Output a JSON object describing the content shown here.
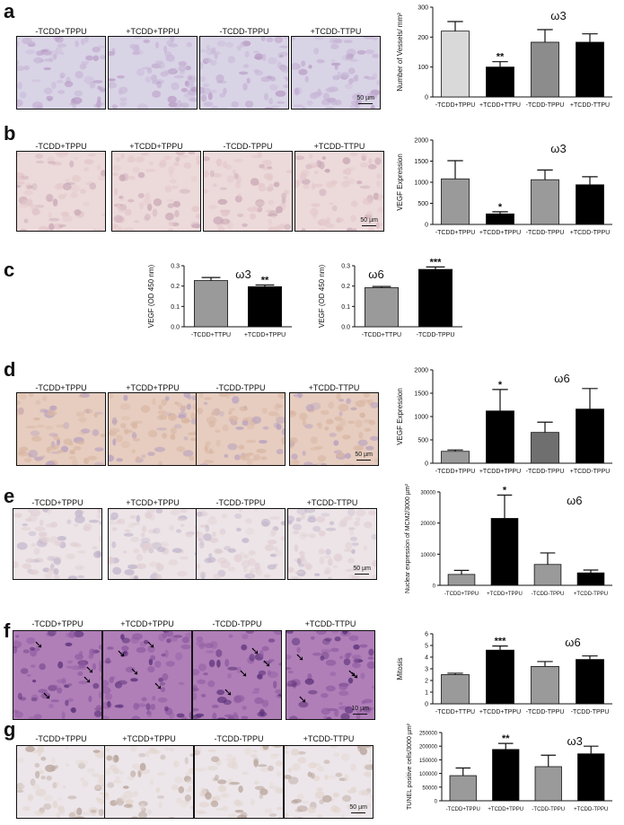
{
  "figure": {
    "panels": [
      {
        "letter": "a",
        "labels": [
          "-TCDD+TPPU",
          "+TCDD+TPPU",
          "-TCDD-TPPU",
          "+TCDD-TTPU"
        ],
        "scale": "50 µm",
        "bg": "#d9d3e6",
        "tint": "#c7b7d6",
        "spot": "#b89cc5"
      },
      {
        "letter": "b",
        "labels": [
          "-TCDD+TPPU",
          "+TCDD+TPPU",
          "-TCDD-TPPU",
          "+TCDD-TTPU"
        ],
        "scale": "50 µm",
        "bg": "#ecd9da",
        "tint": "#e3c7c9",
        "spot": "#c9a8b6"
      },
      {
        "letter": "c",
        "labels": [],
        "scale": "",
        "bg": "#ffffff",
        "tint": "#ffffff",
        "spot": "#ffffff"
      },
      {
        "letter": "d",
        "labels": [
          "-TCDD+TPPU",
          "+TCDD+TPPU",
          "-TCDD-TPPU",
          "+TCDD-TTPU"
        ],
        "scale": "50 µm",
        "bg": "#e6cdbf",
        "tint": "#d9b6a3",
        "spot": "#b7a0c0"
      },
      {
        "letter": "e",
        "labels": [
          "-TCDD+TPPU",
          "+TCDD+TPPU",
          "-TCDD-TPPU",
          "+TCDD-TTPU"
        ],
        "scale": "50 µm",
        "bg": "#ece4e6",
        "tint": "#e1cfd4",
        "spot": "#c1b5cc"
      },
      {
        "letter": "f",
        "labels": [
          "-TCDD+TPPU",
          "+TCDD+TPPU",
          "-TCDD-TPPU",
          "+TCDD-TTPU"
        ],
        "scale": "10 µm",
        "bg": "#b07fb8",
        "tint": "#8e5aa0",
        "spot": "#5a2f78"
      },
      {
        "letter": "g",
        "labels": [
          "-TCDD+TPPU",
          "+TCDD+TPPU",
          "-TCDD-TPPU",
          "+TCDD-TTPU"
        ],
        "scale": "50 µm",
        "bg": "#ece6ea",
        "tint": "#e3d6cf",
        "spot": "#b8a49a"
      }
    ]
  },
  "chart_data": [
    {
      "id": "a",
      "type": "bar",
      "title": "ω3",
      "ylabel": "Number of Vessels/ mm²",
      "ylim": [
        0,
        300
      ],
      "yticks": [
        "0",
        "100",
        "200",
        "300"
      ],
      "categories": [
        "-TCDD+TPPU",
        "+TCDD+TTPU",
        "-TCDD-TPPU",
        "+TCDD-TTPU"
      ],
      "values": [
        220,
        100,
        183,
        183
      ],
      "errors": [
        32,
        18,
        42,
        28
      ],
      "sig": [
        "",
        "**",
        "",
        ""
      ],
      "colors": [
        "#d9d9d9",
        "#000000",
        "#8c8c8c",
        "#000000"
      ]
    },
    {
      "id": "b",
      "type": "bar",
      "title": "ω3",
      "ylabel": "VEGF Expression",
      "ylim": [
        0,
        2000
      ],
      "yticks": [
        "0",
        "500",
        "1000",
        "1500",
        "2000"
      ],
      "categories": [
        "-TCDD+TPPU",
        "+TCDD+TPPU",
        "-TCDD-TPPU",
        "+TCDD-TPPU"
      ],
      "values": [
        1080,
        250,
        1060,
        940
      ],
      "errors": [
        430,
        50,
        230,
        190
      ],
      "sig": [
        "",
        "*",
        "",
        ""
      ],
      "colors": [
        "#9a9a9a",
        "#000000",
        "#9a9a9a",
        "#000000"
      ]
    },
    {
      "id": "c1",
      "type": "bar",
      "title": "ω3",
      "ylabel": "VEGF (OD 450 nm)",
      "ylim": [
        0,
        0.3
      ],
      "yticks": [
        "0.0",
        "0.1",
        "0.2",
        "0.3"
      ],
      "categories": [
        "-TCDD+TTPU",
        "+TCDD+TPPU"
      ],
      "values": [
        0.227,
        0.197
      ],
      "errors": [
        0.015,
        0.008
      ],
      "sig": [
        "",
        "**"
      ],
      "colors": [
        "#9a9a9a",
        "#000000"
      ]
    },
    {
      "id": "c2",
      "type": "bar",
      "title": "ω6",
      "ylabel": "VEGF (OD 450 nm)",
      "ylim": [
        0,
        0.3
      ],
      "yticks": [
        "0.0",
        "0.1",
        "0.2",
        "0.3"
      ],
      "categories": [
        "-TCDD+TTPU",
        "-TCDD-TPPU"
      ],
      "values": [
        0.192,
        0.282
      ],
      "errors": [
        0.006,
        0.012
      ],
      "sig": [
        "",
        "***"
      ],
      "colors": [
        "#9a9a9a",
        "#000000"
      ]
    },
    {
      "id": "d",
      "type": "bar",
      "title": "ω6",
      "ylabel": "VEGF Expression",
      "ylim": [
        0,
        2000
      ],
      "yticks": [
        "0",
        "500",
        "1000",
        "1500",
        "2000"
      ],
      "categories": [
        "-TCDD+TPPU",
        "+TCDD+TPPU",
        "-TCDD-TPPU",
        "+TCDD-TPPU"
      ],
      "values": [
        255,
        1120,
        660,
        1160
      ],
      "errors": [
        30,
        460,
        220,
        440
      ],
      "sig": [
        "",
        "*",
        "",
        ""
      ],
      "colors": [
        "#9a9a9a",
        "#000000",
        "#6f6f6f",
        "#000000"
      ]
    },
    {
      "id": "e",
      "type": "bar",
      "title": "ω6",
      "ylabel": "Nuclear expression of MCM2/3000 µm²",
      "ylim": [
        0,
        30000
      ],
      "yticks": [
        "0",
        "10000",
        "20000",
        "30000"
      ],
      "categories": [
        "-TCDD+TPPU",
        "+TCDD+TPPU",
        "-TCDD-TPPU",
        "+TCDD-TPPU"
      ],
      "values": [
        3500,
        21500,
        6700,
        4000
      ],
      "errors": [
        1300,
        7500,
        3700,
        900
      ],
      "sig": [
        "",
        "*",
        "",
        ""
      ],
      "colors": [
        "#9a9a9a",
        "#000000",
        "#9a9a9a",
        "#000000"
      ]
    },
    {
      "id": "f",
      "type": "bar",
      "title": "ω6",
      "ylabel": "Mitosis",
      "ylim": [
        0,
        6
      ],
      "yticks": [
        "0",
        "1",
        "2",
        "3",
        "4",
        "5",
        "6"
      ],
      "categories": [
        "-TCDD+TTPU",
        "+TCDD+TPPU",
        "-TCDD-TPPU",
        "-TCDD-TPPU"
      ],
      "values": [
        2.5,
        4.6,
        3.2,
        3.8
      ],
      "errors": [
        0.12,
        0.35,
        0.42,
        0.3
      ],
      "sig": [
        "",
        "***",
        "",
        ""
      ],
      "colors": [
        "#9a9a9a",
        "#000000",
        "#9a9a9a",
        "#000000"
      ]
    },
    {
      "id": "g",
      "type": "bar",
      "title": "ω3",
      "ylabel": "TUNEL positive cells/3000 µm²",
      "ylim": [
        0,
        250000
      ],
      "yticks": [
        "0",
        "50000",
        "100000",
        "150000",
        "200000",
        "250000"
      ],
      "categories": [
        "-TCDD+TPPU",
        "+TCDD+TPPU",
        "-TCDD-TPPU",
        "+TCDD-TPPU"
      ],
      "values": [
        92000,
        188000,
        125000,
        172000
      ],
      "errors": [
        28000,
        22000,
        42000,
        28000
      ],
      "sig": [
        "",
        "**",
        "",
        ""
      ],
      "colors": [
        "#9a9a9a",
        "#000000",
        "#9a9a9a",
        "#000000"
      ]
    }
  ]
}
